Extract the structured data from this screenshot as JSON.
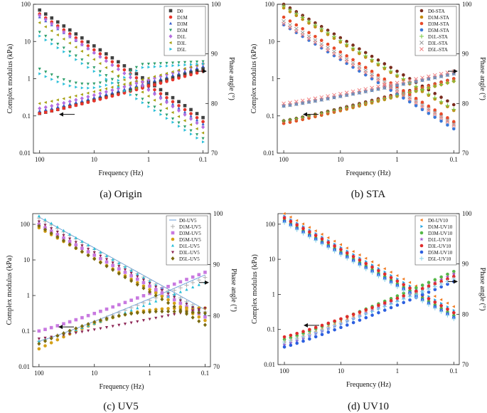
{
  "figure": {
    "panels": [
      {
        "caption": "(a) Origin",
        "chart_data": {
          "type": "scatter",
          "title": "",
          "xlabel": "Frequency (Hz)",
          "ylabel": "Complex modulus (kPa)",
          "y2label": "Phase angle (°)",
          "xscale": "log",
          "xreversed": true,
          "xlim": [
            0.08,
            130
          ],
          "xticks": [
            "100",
            "10",
            "1",
            "0.1"
          ],
          "yscale": "log",
          "ylim": [
            0.01,
            100
          ],
          "yticks": [
            "0.01",
            "0.1",
            "1",
            "10",
            "100"
          ],
          "y2lim": [
            70,
            100
          ],
          "y2ticks": [
            "70",
            "80",
            "90",
            "100"
          ],
          "legend": [
            "D0",
            "D1M",
            "D3M",
            "D5M",
            "D1L",
            "D3L",
            "D5L"
          ],
          "legend_position": "top-right",
          "arrows": [
            "modulus-left",
            "phase-right"
          ],
          "series": [
            {
              "name": "D0",
              "color": "#404040",
              "marker": "square",
              "modulus": {
                "at100": 70,
                "at0_1": 0.09
              },
              "phase": {
                "at100": 78.0,
                "at0_1": 87.0,
                "shape": "rise"
              }
            },
            {
              "name": "D1M",
              "color": "#e8342a",
              "marker": "circle",
              "modulus": {
                "at100": 55,
                "at0_1": 0.07
              },
              "phase": {
                "at100": 78.0,
                "at0_1": 86.5,
                "shape": "rise"
              }
            },
            {
              "name": "D3M",
              "color": "#3a5fcd",
              "marker": "triangle",
              "modulus": {
                "at100": 45,
                "at0_1": 0.06
              },
              "phase": {
                "at100": 78.5,
                "at0_1": 87.5,
                "shape": "rise"
              }
            },
            {
              "name": "D5M",
              "color": "#2e9e6a",
              "marker": "tridown",
              "modulus": {
                "at100": 18,
                "at0_1": 0.025
              },
              "phase": {
                "at100": 87.0,
                "at0_1": 88.5,
                "shape": "dip"
              }
            },
            {
              "name": "D1L",
              "color": "#b46ee0",
              "marker": "diamond",
              "modulus": {
                "at100": 50,
                "at0_1": 0.05
              },
              "phase": {
                "at100": 79.0,
                "at0_1": 88.0,
                "shape": "rise"
              }
            },
            {
              "name": "D3L",
              "color": "#a6a010",
              "marker": "trileft",
              "modulus": {
                "at100": 32,
                "at0_1": 0.035
              },
              "phase": {
                "at100": 80.0,
                "at0_1": 88.0,
                "shape": "rise"
              }
            },
            {
              "name": "D5L",
              "color": "#2bbfd9",
              "marker": "triright",
              "modulus": {
                "at100": 14,
                "at0_1": 0.02
              },
              "phase": {
                "at100": 86.0,
                "at0_1": 88.0,
                "shape": "dip"
              }
            }
          ]
        }
      },
      {
        "caption": "(b) STA",
        "chart_data": {
          "type": "scatter",
          "title": "",
          "xlabel": "Frequency (Hz)",
          "ylabel": "Complex modulus (kPa)",
          "y2label": "Phase angle (°)",
          "xscale": "log",
          "xreversed": true,
          "xlim": [
            0.08,
            130
          ],
          "xticks": [
            "100",
            "10",
            "1",
            "0.1"
          ],
          "yscale": "log",
          "ylim": [
            0.01,
            100
          ],
          "yticks": [
            "0.01",
            "0.1",
            "1",
            "10",
            "100"
          ],
          "y2lim": [
            70,
            100
          ],
          "y2ticks": [
            "70",
            "80",
            "90",
            "100"
          ],
          "legend": [
            "D0-STA",
            "D1M-STA",
            "D3M-STA",
            "D5M-STA",
            "D1L-STA",
            "D3L-STA",
            "D5L-STA"
          ],
          "legend_position": "top-right",
          "arrows": [
            "modulus-left",
            "phase-right"
          ],
          "series": [
            {
              "name": "D0-STA",
              "color": "#7a2b1e",
              "marker": "circle",
              "modulus": {
                "at100": 100,
                "at0_1": 0.2
              },
              "phase": {
                "at100": 76.5,
                "at0_1": 85.0,
                "shape": "rise"
              }
            },
            {
              "name": "D1M-STA",
              "color": "#c48a10",
              "marker": "circle",
              "modulus": {
                "at100": 80,
                "at0_1": 0.14
              },
              "phase": {
                "at100": 76.0,
                "at0_1": 84.5,
                "shape": "rise"
              }
            },
            {
              "name": "D3M-STA",
              "color": "#e84a2a",
              "marker": "circle",
              "modulus": {
                "at100": 45,
                "at0_1": 0.07
              },
              "phase": {
                "at100": 76.0,
                "at0_1": 85.0,
                "shape": "rise"
              }
            },
            {
              "name": "D5M-STA",
              "color": "#3a78d8",
              "marker": "circle",
              "modulus": {
                "at100": 28,
                "at0_1": 0.045
              },
              "phase": {
                "at100": 79.5,
                "at0_1": 86.0,
                "shape": "rise"
              }
            },
            {
              "name": "D1L-STA",
              "color": "#7ac943",
              "marker": "plus",
              "modulus": {
                "at100": 90,
                "at0_1": 0.15
              },
              "phase": {
                "at100": 76.5,
                "at0_1": 84.5,
                "shape": "rise"
              }
            },
            {
              "name": "D3L-STA",
              "color": "#9a9a9a",
              "marker": "cross",
              "modulus": {
                "at100": 35,
                "at0_1": 0.06
              },
              "phase": {
                "at100": 79.5,
                "at0_1": 86.0,
                "shape": "rise"
              }
            },
            {
              "name": "D5L-STA",
              "color": "#f08080",
              "marker": "cross",
              "modulus": {
                "at100": 30,
                "at0_1": 0.055
              },
              "phase": {
                "at100": 80.0,
                "at0_1": 86.5,
                "shape": "rise"
              }
            }
          ]
        }
      },
      {
        "caption": "(c) UV5",
        "chart_data": {
          "type": "scatter",
          "title": "",
          "xlabel": "Frequency (Hz)",
          "ylabel": "Complex modulus (kPa)",
          "y2label": "Phase angle (°)",
          "xscale": "log",
          "xreversed": true,
          "xlim": [
            0.08,
            130
          ],
          "xticks": [
            "100",
            "10",
            "1",
            "0.1"
          ],
          "yscale": "log",
          "ylim": [
            0.01,
            200
          ],
          "yticks": [
            "0.01",
            "0.1",
            "1",
            "10",
            "100"
          ],
          "y2lim": [
            70,
            100
          ],
          "y2ticks": [
            "70",
            "80",
            "90",
            "100"
          ],
          "legend": [
            "D0-UV5",
            "D1M-UV5",
            "D3M-UV5",
            "D5M-UV5",
            "D1L-UV5",
            "D3L-UV5",
            "D5L-UV5"
          ],
          "legend_position": "top-right",
          "arrows": [
            "modulus-left",
            "phase-right"
          ],
          "series": [
            {
              "name": "D0-UV5",
              "color": "#6a9fd8",
              "marker": "line",
              "modulus": {
                "at100": 160,
                "at0_1": 0.4
              },
              "phase": {
                "at100": 75.0,
                "at0_1": 88.0,
                "shape": "rise"
              }
            },
            {
              "name": "D1M-UV5",
              "color": "#b0b0b0",
              "marker": "plus",
              "modulus": {
                "at100": 150,
                "at0_1": 0.35
              },
              "phase": {
                "at100": 75.0,
                "at0_1": 87.5,
                "shape": "rise"
              }
            },
            {
              "name": "D3M-UV5",
              "color": "#c879e0",
              "marker": "square",
              "modulus": {
                "at100": 100,
                "at0_1": 0.25
              },
              "phase": {
                "at100": 77.0,
                "at0_1": 88.5,
                "shape": "rise"
              }
            },
            {
              "name": "D5M-UV5",
              "color": "#d4a017",
              "marker": "circle",
              "modulus": {
                "at100": 80,
                "at0_1": 0.2
              },
              "phase": {
                "at100": 73.5,
                "at0_1": 81.5,
                "shape": "hump"
              }
            },
            {
              "name": "D1L-UV5",
              "color": "#2bbfd9",
              "marker": "triangle",
              "modulus": {
                "at100": 170,
                "at0_1": 0.3
              },
              "phase": {
                "at100": 75.0,
                "at0_1": 86.5,
                "shape": "rise"
              }
            },
            {
              "name": "D3L-UV5",
              "color": "#8b2252",
              "marker": "tridown",
              "modulus": {
                "at100": 120,
                "at0_1": 0.3
              },
              "phase": {
                "at100": 75.5,
                "at0_1": 81.5,
                "shape": "rise"
              }
            },
            {
              "name": "D5L-UV5",
              "color": "#7a6a10",
              "marker": "diamond",
              "modulus": {
                "at100": 90,
                "at0_1": 0.15
              },
              "phase": {
                "at100": 74.5,
                "at0_1": 80.5,
                "shape": "hump"
              }
            }
          ]
        }
      },
      {
        "caption": "(d) UV10",
        "chart_data": {
          "type": "scatter",
          "title": "",
          "xlabel": "Frequency (Hz)",
          "ylabel": "Complex modulus (kPa)",
          "y2label": "Phase angle (°)",
          "xscale": "log",
          "xreversed": true,
          "xlim": [
            0.08,
            130
          ],
          "xticks": [
            "100",
            "10",
            "1",
            "0.1"
          ],
          "yscale": "log",
          "ylim": [
            0.01,
            200
          ],
          "yticks": [
            "0.01",
            "0.1",
            "1",
            "10",
            "100"
          ],
          "y2lim": [
            70,
            100
          ],
          "y2ticks": [
            "70",
            "80",
            "90",
            "100"
          ],
          "legend": [
            "D0-UV10",
            "D1M-UV10",
            "D3M-UV10",
            "D1L-UV10",
            "D3L-UV10",
            "D5M-UV10",
            "D5L-UV10"
          ],
          "legend_position": "top-right",
          "arrows": [
            "modulus-left",
            "phase-right"
          ],
          "series": [
            {
              "name": "D0-UV10",
              "color": "#f07a20",
              "marker": "trileft",
              "modulus": {
                "at100": 200,
                "at0_1": 0.45
              },
              "phase": {
                "at100": 74.5,
                "at0_1": 88.0,
                "shape": "rise"
              }
            },
            {
              "name": "D1M-UV10",
              "color": "#2aa6e0",
              "marker": "triright",
              "modulus": {
                "at100": 170,
                "at0_1": 0.35
              },
              "phase": {
                "at100": 74.0,
                "at0_1": 87.5,
                "shape": "rise"
              }
            },
            {
              "name": "D3M-UV10",
              "color": "#55b848",
              "marker": "circle",
              "modulus": {
                "at100": 130,
                "at0_1": 0.25
              },
              "phase": {
                "at100": 75.0,
                "at0_1": 88.5,
                "shape": "rise"
              }
            },
            {
              "name": "D1L-UV10",
              "color": "#9a5ad0",
              "marker": "star",
              "modulus": {
                "at100": 160,
                "at0_1": 0.3
              },
              "phase": {
                "at100": 74.0,
                "at0_1": 88.0,
                "shape": "rise"
              }
            },
            {
              "name": "D3L-UV10",
              "color": "#e02c2c",
              "marker": "circle",
              "modulus": {
                "at100": 150,
                "at0_1": 0.3
              },
              "phase": {
                "at100": 75.5,
                "at0_1": 87.5,
                "shape": "rise"
              }
            },
            {
              "name": "D5M-UV10",
              "color": "#2c5fe0",
              "marker": "circle",
              "modulus": {
                "at100": 120,
                "at0_1": 0.22
              },
              "phase": {
                "at100": 73.5,
                "at0_1": 86.5,
                "shape": "rise"
              }
            },
            {
              "name": "D5L-UV10",
              "color": "#8ad0e8",
              "marker": "plus",
              "modulus": {
                "at100": 110,
                "at0_1": 0.2
              },
              "phase": {
                "at100": 74.5,
                "at0_1": 87.0,
                "shape": "rise"
              }
            }
          ]
        }
      }
    ]
  }
}
